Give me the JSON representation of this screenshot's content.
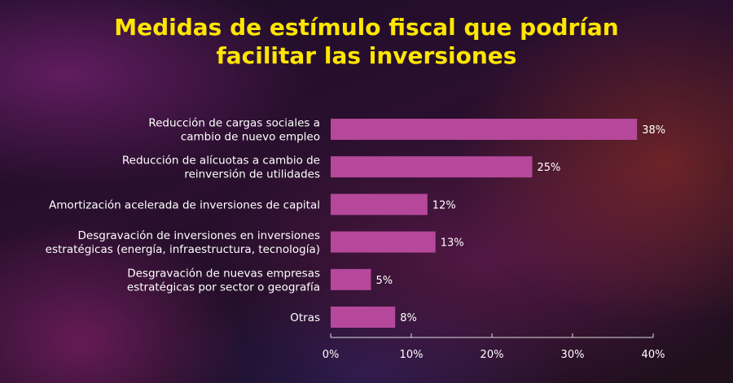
{
  "chart_data": {
    "type": "bar",
    "orientation": "horizontal",
    "title": "Medidas de estímulo fiscal que podrían facilitar las inversiones",
    "title_lines": [
      "Medidas de estímulo fiscal que podrían",
      "facilitar las inversiones"
    ],
    "categories": [
      [
        "Reducción de cargas sociales a",
        "cambio de nuevo empleo"
      ],
      [
        "Reducción de alícuotas a cambio de",
        "reinversión de utilidades"
      ],
      [
        "Amortización acelerada de inversiones de capital"
      ],
      [
        "Desgravación de inversiones en inversiones",
        "estratégicas (energía, infraestructura, tecnología)"
      ],
      [
        "Desgravación de nuevas empresas",
        "estratégicas por sector o geografía"
      ],
      [
        "Otras"
      ]
    ],
    "values": [
      38,
      25,
      12,
      13,
      5,
      8
    ],
    "value_labels": [
      "38%",
      "25%",
      "12%",
      "13%",
      "5%",
      "8%"
    ],
    "xlim": [
      0,
      40
    ],
    "xticks": [
      0,
      10,
      20,
      30,
      40
    ],
    "xtick_labels": [
      "0%",
      "10%",
      "20%",
      "30%",
      "40%"
    ],
    "grid": false,
    "colors": {
      "bar": "#b5489a",
      "title": "#ffe600",
      "text": "#ffffff"
    }
  }
}
